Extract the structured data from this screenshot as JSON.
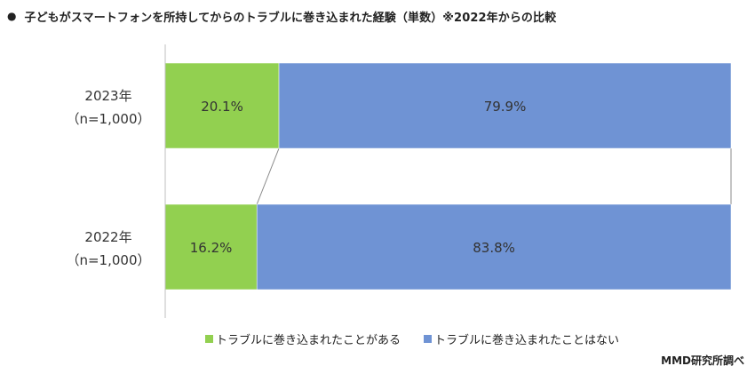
{
  "title": {
    "bullet": "●",
    "text": "子どもがスマートフォンを所持してからのトラブルに巻き込まれた経験（単数）※2022年からの比較"
  },
  "chart_data": {
    "type": "bar",
    "orientation": "horizontal",
    "stacked": true,
    "percent": true,
    "categories": [
      "2023年\n（n=1,000）",
      "2022年\n（n=1,000）"
    ],
    "series": [
      {
        "name": "トラブルに巻き込まれたことがある",
        "values": [
          20.1,
          16.2
        ],
        "labels": [
          "20.1%",
          "16.2%"
        ],
        "color": "#92d050"
      },
      {
        "name": "トラブルに巻き込まれたことはない",
        "values": [
          79.9,
          83.8
        ],
        "labels": [
          "79.9%",
          "83.8%"
        ],
        "color": "#6f93d4"
      }
    ],
    "xlim": [
      0,
      100
    ],
    "grid": false,
    "series_lines": true,
    "legend_position": "bottom"
  },
  "source": "MMD研究所調べ"
}
